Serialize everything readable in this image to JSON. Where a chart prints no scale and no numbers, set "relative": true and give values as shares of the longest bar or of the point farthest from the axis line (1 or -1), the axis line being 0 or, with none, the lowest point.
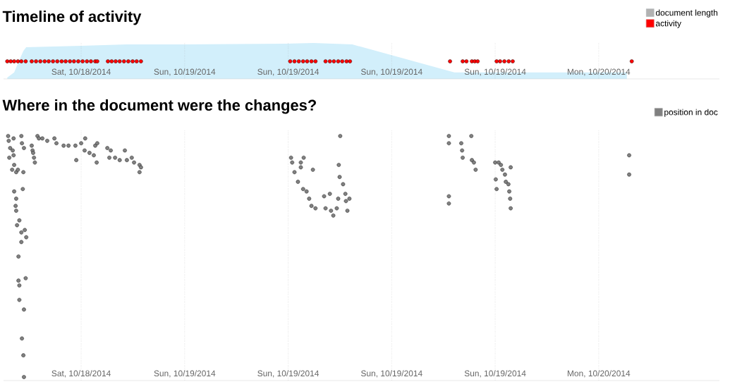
{
  "chart_data": [
    {
      "type": "area",
      "title": "Timeline of activity",
      "relative": true,
      "xlim": [
        "2014-10-18T13:30",
        "2014-10-20T07:00"
      ],
      "xticks": [
        {
          "value": "2014-10-18T18:00",
          "label": "Sat, 10/18/2014"
        },
        {
          "value": "2014-10-19T00:00",
          "label": "Sun, 10/19/2014"
        },
        {
          "value": "2014-10-19T06:00",
          "label": "Sun, 10/19/2014"
        },
        {
          "value": "2014-10-19T12:00",
          "label": "Sun, 10/19/2014"
        },
        {
          "value": "2014-10-19T18:00",
          "label": "Sun, 10/19/2014"
        },
        {
          "value": "2014-10-20T00:00",
          "label": "Mon, 10/20/2014"
        }
      ],
      "grid": "x",
      "legend": "top right",
      "tick_labels": "x",
      "series": [
        {
          "name": "document length",
          "type": "area",
          "color": "#d2effb",
          "x": [
            "2014-10-18T13:43",
            "2014-10-18T14:07",
            "2014-10-18T14:20",
            "2014-10-18T14:39",
            "2014-10-18T14:49",
            "2014-10-18T18:00",
            "2014-10-18T20:39",
            "2014-10-19T00:00",
            "2014-10-19T05:50",
            "2014-10-19T07:28",
            "2014-10-19T09:43",
            "2014-10-19T15:38",
            "2014-10-20T01:38"
          ],
          "values": [
            0.04,
            0.18,
            0.43,
            0.78,
            0.88,
            0.92,
            0.96,
            0.96,
            0.98,
            1.0,
            0.96,
            0.18,
            0.18
          ]
        },
        {
          "name": "activity",
          "type": "scatter",
          "marker": "circle",
          "color": "#ff0000",
          "x": [
            "2014-10-18T13:43",
            "2014-10-18T13:55",
            "2014-10-18T14:07",
            "2014-10-18T14:20",
            "2014-10-18T14:32",
            "2014-10-18T14:47",
            "2014-10-18T15:08",
            "2014-10-18T15:23",
            "2014-10-18T15:38",
            "2014-10-18T15:53",
            "2014-10-18T16:07",
            "2014-10-18T16:22",
            "2014-10-18T16:37",
            "2014-10-18T16:52",
            "2014-10-18T17:06",
            "2014-10-18T17:21",
            "2014-10-18T17:35",
            "2014-10-18T17:50",
            "2014-10-18T18:05",
            "2014-10-18T18:20",
            "2014-10-18T18:34",
            "2014-10-18T18:49",
            "2014-10-18T18:56",
            "2014-10-18T19:33",
            "2014-10-18T19:46",
            "2014-10-18T20:00",
            "2014-10-18T20:14",
            "2014-10-18T20:29",
            "2014-10-18T20:44",
            "2014-10-18T20:59",
            "2014-10-18T21:13",
            "2014-10-18T21:28",
            "2014-10-19T06:07",
            "2014-10-19T06:22",
            "2014-10-19T06:37",
            "2014-10-19T06:52",
            "2014-10-19T07:06",
            "2014-10-19T07:21",
            "2014-10-19T07:35",
            "2014-10-19T08:10",
            "2014-10-19T08:25",
            "2014-10-19T08:39",
            "2014-10-19T08:54",
            "2014-10-19T09:08",
            "2014-10-19T09:23",
            "2014-10-19T09:35",
            "2014-10-19T15:23",
            "2014-10-19T16:07",
            "2014-10-19T16:20",
            "2014-10-19T16:39",
            "2014-10-19T16:49",
            "2014-10-19T16:59",
            "2014-10-19T18:05",
            "2014-10-19T18:17",
            "2014-10-19T18:32",
            "2014-10-19T18:47",
            "2014-10-19T19:01",
            "2014-10-20T01:55"
          ],
          "values": [
            0.49,
            0.49,
            0.49,
            0.49,
            0.49,
            0.49,
            0.49,
            0.49,
            0.49,
            0.49,
            0.49,
            0.49,
            0.49,
            0.49,
            0.49,
            0.49,
            0.49,
            0.49,
            0.49,
            0.49,
            0.49,
            0.49,
            0.49,
            0.49,
            0.49,
            0.49,
            0.49,
            0.49,
            0.49,
            0.49,
            0.49,
            0.49,
            0.49,
            0.49,
            0.49,
            0.49,
            0.49,
            0.49,
            0.49,
            0.49,
            0.49,
            0.49,
            0.49,
            0.49,
            0.49,
            0.49,
            0.49,
            0.49,
            0.49,
            0.49,
            0.49,
            0.49,
            0.49,
            0.49,
            0.49,
            0.49,
            0.49,
            0.49
          ]
        }
      ]
    },
    {
      "type": "scatter",
      "title": "Where in the document were the changes?",
      "relative": true,
      "marker": "circle",
      "xlim": [
        "2014-10-18T13:30",
        "2014-10-20T07:00"
      ],
      "xticks": [
        {
          "value": "2014-10-18T18:00",
          "label": "Sat, 10/18/2014"
        },
        {
          "value": "2014-10-19T00:00",
          "label": "Sun, 10/19/2014"
        },
        {
          "value": "2014-10-19T06:00",
          "label": "Sun, 10/19/2014"
        },
        {
          "value": "2014-10-19T12:00",
          "label": "Sun, 10/19/2014"
        },
        {
          "value": "2014-10-19T18:00",
          "label": "Sun, 10/19/2014"
        },
        {
          "value": "2014-10-20T00:00",
          "label": "Mon, 10/20/2014"
        }
      ],
      "grid": "x",
      "legend": "top right",
      "tick_labels": "x",
      "series": [
        {
          "name": "position in doc",
          "color": "#808080",
          "x": [
            "2014-10-18T13:46",
            "2014-10-18T13:48",
            "2014-10-18T13:53",
            "2014-10-18T14:02",
            "2014-10-18T13:50",
            "2014-10-18T14:05",
            "2014-10-18T14:07",
            "2014-10-18T14:00",
            "2014-10-18T14:14",
            "2014-10-18T14:20",
            "2014-10-18T14:39",
            "2014-10-18T14:32",
            "2014-10-18T14:05",
            "2014-10-18T14:34",
            "2014-10-18T14:41",
            "2014-10-18T14:37",
            "2014-10-18T14:07",
            "2014-10-18T14:14",
            "2014-10-18T14:12",
            "2014-10-18T14:14",
            "2014-10-18T14:25",
            "2014-10-18T14:17",
            "2014-10-18T14:44",
            "2014-10-18T14:32",
            "2014-10-18T14:32",
            "2014-10-18T14:49",
            "2014-10-18T14:22",
            "2014-10-18T14:22",
            "2014-10-18T14:25",
            "2014-10-18T14:47",
            "2014-10-18T14:25",
            "2014-10-18T14:41",
            "2014-10-18T14:34",
            "2014-10-18T14:39",
            "2014-10-18T14:41",
            "2014-10-18T15:08",
            "2014-10-18T15:11",
            "2014-10-18T15:13",
            "2014-10-18T15:16",
            "2014-10-18T15:19",
            "2014-10-18T15:28",
            "2014-10-18T15:33",
            "2014-10-18T15:45",
            "2014-10-18T16:02",
            "2014-10-18T16:27",
            "2014-10-18T16:34",
            "2014-10-18T16:59",
            "2014-10-18T17:16",
            "2014-10-18T17:40",
            "2014-10-18T18:00",
            "2014-10-18T17:43",
            "2014-10-18T18:12",
            "2014-10-18T18:29",
            "2014-10-18T18:44",
            "2014-10-18T18:54",
            "2014-10-18T18:49",
            "2014-10-18T18:56",
            "2014-10-18T18:14",
            "2014-10-18T19:31",
            "2014-10-18T19:43",
            "2014-10-18T19:38",
            "2014-10-18T19:58",
            "2014-10-18T20:14",
            "2014-10-18T20:32",
            "2014-10-18T20:39",
            "2014-10-18T20:56",
            "2014-10-18T21:04",
            "2014-10-18T21:23",
            "2014-10-18T21:28",
            "2014-10-18T21:23",
            "2014-10-19T06:10",
            "2014-10-19T06:14",
            "2014-10-19T06:22",
            "2014-10-19T06:34",
            "2014-10-19T06:52",
            "2014-10-19T07:04",
            "2014-10-19T07:13",
            "2014-10-19T07:21",
            "2014-10-19T07:35",
            "2014-10-19T08:10",
            "2014-10-19T08:29",
            "2014-10-19T08:37",
            "2014-10-19T08:49",
            "2014-10-19T06:54",
            "2014-10-19T06:44",
            "2014-10-19T06:44",
            "2014-10-19T07:26",
            "2014-10-19T09:01",
            "2014-10-19T08:56",
            "2014-10-19T08:59",
            "2014-10-19T09:11",
            "2014-10-19T09:19",
            "2014-10-19T08:54",
            "2014-10-19T08:25",
            "2014-10-19T08:05",
            "2014-10-19T09:21",
            "2014-10-19T09:26",
            "2014-10-19T09:33",
            "2014-10-19T15:19",
            "2014-10-19T15:19",
            "2014-10-19T16:37",
            "2014-10-19T16:02",
            "2014-10-19T16:05",
            "2014-10-19T16:07",
            "2014-10-19T16:39",
            "2014-10-19T16:46",
            "2014-10-19T16:52",
            "2014-10-19T15:19",
            "2014-10-19T15:19",
            "2014-10-19T18:00",
            "2014-10-19T18:12",
            "2014-10-19T18:20",
            "2014-10-19T18:25",
            "2014-10-19T18:54",
            "2014-10-19T18:34",
            "2014-10-19T18:37",
            "2014-10-19T18:46",
            "2014-10-19T18:49",
            "2014-10-19T18:52",
            "2014-10-19T18:54",
            "2014-10-19T18:02",
            "2014-10-19T18:05",
            "2014-10-20T01:46",
            "2014-10-20T01:46"
          ],
          "values": [
            1.0,
            0.98,
            0.95,
            0.94,
            0.91,
            0.92,
            0.88,
            0.86,
            0.85,
            0.86,
            0.85,
            1.0,
            0.99,
            0.97,
            0.95,
            0.78,
            0.77,
            0.74,
            0.71,
            0.69,
            0.65,
            0.63,
            0.61,
            0.6,
            0.56,
            0.58,
            0.5,
            0.4,
            0.38,
            0.41,
            0.32,
            0.28,
            0.16,
            0.09,
            0.0,
            0.96,
            0.94,
            0.93,
            0.91,
            0.89,
            1.0,
            0.99,
            0.99,
            0.98,
            0.99,
            0.97,
            0.96,
            0.96,
            0.96,
            0.97,
            0.9,
            0.94,
            0.93,
            0.92,
            0.89,
            0.96,
            0.97,
            0.99,
            0.95,
            0.94,
            0.91,
            0.91,
            0.9,
            0.94,
            0.9,
            0.91,
            0.89,
            0.88,
            0.87,
            0.85,
            0.91,
            0.89,
            0.85,
            0.81,
            0.78,
            0.77,
            0.74,
            0.71,
            0.7,
            0.7,
            0.69,
            0.67,
            0.7,
            0.91,
            0.89,
            0.87,
            0.86,
            1.0,
            0.88,
            0.83,
            0.8,
            0.76,
            0.74,
            0.76,
            0.75,
            0.73,
            0.69,
            0.74,
            1.0,
            0.97,
            1.0,
            0.97,
            0.94,
            0.91,
            0.9,
            0.89,
            0.86,
            0.75,
            0.72,
            0.89,
            0.89,
            0.88,
            0.86,
            0.87,
            0.84,
            0.81,
            0.8,
            0.77,
            0.74,
            0.7,
            0.82,
            0.78,
            0.92,
            0.84
          ]
        }
      ]
    }
  ]
}
